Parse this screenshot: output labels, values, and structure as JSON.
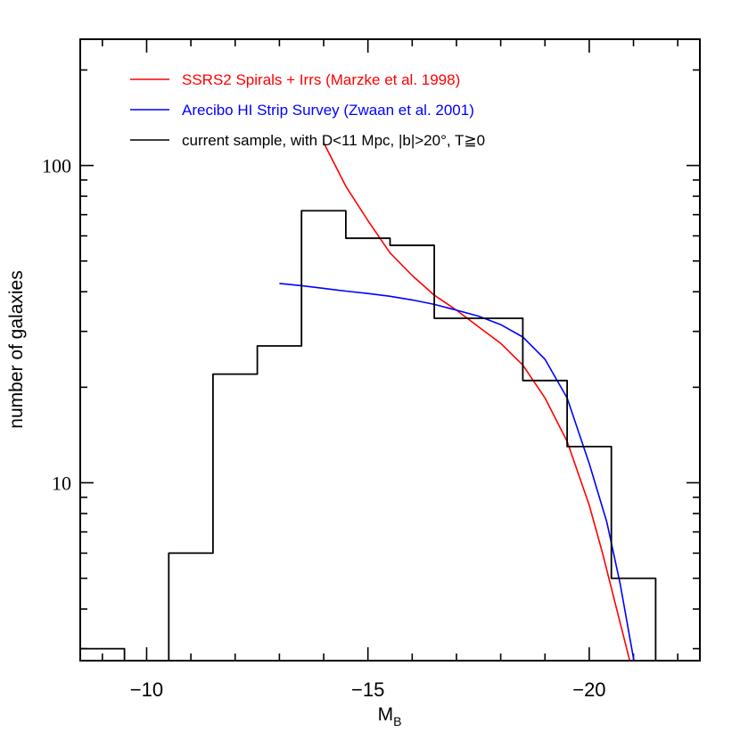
{
  "chart_data": {
    "type": "line",
    "xlabel": "M",
    "xlabel_sub": "B",
    "ylabel": "number of galaxies",
    "xlim": [
      -8.5,
      -22.5
    ],
    "ylim": [
      2.75,
      250
    ],
    "yscale": "log",
    "x_tick_labels": [
      {
        "value": -10,
        "label": "−10"
      },
      {
        "value": -15,
        "label": "−15"
      },
      {
        "value": -20,
        "label": "−20"
      }
    ],
    "y_tick_labels": [
      {
        "value": 10,
        "label": "10"
      },
      {
        "value": 100,
        "label": "100"
      }
    ],
    "legend_placement": "top-left",
    "grid": false,
    "series": [
      {
        "name": "SSRS2 Spirals + Irrs (Marzke et al. 1998)",
        "color": "#ff0000",
        "style": "line",
        "x": [
          -14.0,
          -14.5,
          -15.0,
          -15.5,
          -16.0,
          -16.5,
          -17.0,
          -17.5,
          -18.0,
          -18.5,
          -19.0,
          -19.5,
          -20.0,
          -20.3,
          -20.6,
          -20.9,
          -21.0
        ],
        "y": [
          118,
          86,
          67,
          53,
          45,
          39,
          35,
          31,
          27.5,
          23.5,
          18.5,
          13.5,
          8.5,
          6.0,
          4.1,
          2.8,
          2.5
        ]
      },
      {
        "name": "Arecibo HI Strip Survey (Zwaan et al. 2001)",
        "color": "#0000ff",
        "style": "line",
        "x": [
          -13.0,
          -13.5,
          -14.0,
          -14.5,
          -15.0,
          -15.5,
          -16.0,
          -16.5,
          -17.0,
          -17.5,
          -18.0,
          -18.5,
          -19.0,
          -19.5,
          -20.0,
          -20.4,
          -20.7,
          -21.0,
          -21.1
        ],
        "y": [
          42.5,
          41.8,
          41.0,
          40.2,
          39.5,
          38.7,
          37.7,
          36.5,
          35.0,
          33.5,
          31.5,
          28.8,
          24.5,
          18.5,
          11.5,
          7.5,
          4.8,
          2.8,
          2.4
        ]
      },
      {
        "name": "current sample, with D<11 Mpc, |b|>20°, T≧0",
        "color": "#000000",
        "style": "step",
        "bin_edges": [
          -8.5,
          -9.5,
          -10.5,
          -11.5,
          -12.5,
          -13.5,
          -14.5,
          -15.5,
          -16.5,
          -17.5,
          -18.5,
          -19.5,
          -20.5,
          -21.5
        ],
        "counts": [
          3,
          2,
          6,
          22,
          27,
          72,
          59,
          56,
          33,
          33,
          21,
          13,
          5
        ]
      }
    ]
  }
}
